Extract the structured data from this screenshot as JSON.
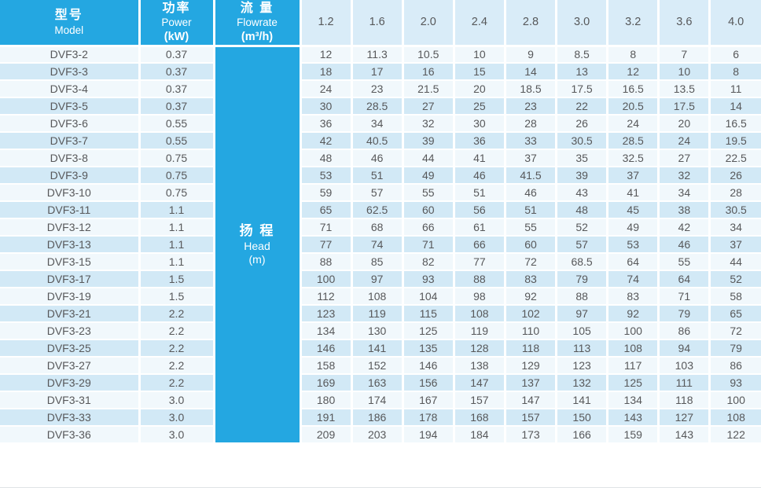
{
  "colors": {
    "accent_cyan": "#24a7e1",
    "flow_header_bg": "#d9ecf8",
    "row_light": "#f1f8fc",
    "row_blue": "#d2e9f6",
    "text_dark": "#57585a",
    "header_text": "#ffffff",
    "separator": "#ffffff"
  },
  "table": {
    "header": {
      "model": {
        "zh": "型号",
        "en": "Model"
      },
      "power": {
        "zh": "功率",
        "en": "Power",
        "unit": "(kW)"
      },
      "flowrate": {
        "zh": "流 量",
        "en": "Flowrate",
        "unit": "(m³/h)"
      },
      "flow_columns": [
        "1.2",
        "1.6",
        "2.0",
        "2.4",
        "2.8",
        "3.0",
        "3.2",
        "3.6",
        "4.0"
      ]
    },
    "head_cell": {
      "zh": "扬 程",
      "en": "Head",
      "unit": "(m)"
    },
    "rows": [
      {
        "model": "DVF3-2",
        "power": "0.37",
        "values": [
          "12",
          "11.3",
          "10.5",
          "10",
          "9",
          "8.5",
          "8",
          "7",
          "6"
        ]
      },
      {
        "model": "DVF3-3",
        "power": "0.37",
        "values": [
          "18",
          "17",
          "16",
          "15",
          "14",
          "13",
          "12",
          "10",
          "8"
        ]
      },
      {
        "model": "DVF3-4",
        "power": "0.37",
        "values": [
          "24",
          "23",
          "21.5",
          "20",
          "18.5",
          "17.5",
          "16.5",
          "13.5",
          "11"
        ]
      },
      {
        "model": "DVF3-5",
        "power": "0.37",
        "values": [
          "30",
          "28.5",
          "27",
          "25",
          "23",
          "22",
          "20.5",
          "17.5",
          "14"
        ]
      },
      {
        "model": "DVF3-6",
        "power": "0.55",
        "values": [
          "36",
          "34",
          "32",
          "30",
          "28",
          "26",
          "24",
          "20",
          "16.5"
        ]
      },
      {
        "model": "DVF3-7",
        "power": "0.55",
        "values": [
          "42",
          "40.5",
          "39",
          "36",
          "33",
          "30.5",
          "28.5",
          "24",
          "19.5"
        ]
      },
      {
        "model": "DVF3-8",
        "power": "0.75",
        "values": [
          "48",
          "46",
          "44",
          "41",
          "37",
          "35",
          "32.5",
          "27",
          "22.5"
        ]
      },
      {
        "model": "DVF3-9",
        "power": "0.75",
        "values": [
          "53",
          "51",
          "49",
          "46",
          "41.5",
          "39",
          "37",
          "32",
          "26"
        ]
      },
      {
        "model": "DVF3-10",
        "power": "0.75",
        "values": [
          "59",
          "57",
          "55",
          "51",
          "46",
          "43",
          "41",
          "34",
          "28"
        ]
      },
      {
        "model": "DVF3-11",
        "power": "1.1",
        "values": [
          "65",
          "62.5",
          "60",
          "56",
          "51",
          "48",
          "45",
          "38",
          "30.5"
        ]
      },
      {
        "model": "DVF3-12",
        "power": "1.1",
        "values": [
          "71",
          "68",
          "66",
          "61",
          "55",
          "52",
          "49",
          "42",
          "34"
        ]
      },
      {
        "model": "DVF3-13",
        "power": "1.1",
        "values": [
          "77",
          "74",
          "71",
          "66",
          "60",
          "57",
          "53",
          "46",
          "37"
        ]
      },
      {
        "model": "DVF3-15",
        "power": "1.1",
        "values": [
          "88",
          "85",
          "82",
          "77",
          "72",
          "68.5",
          "64",
          "55",
          "44"
        ]
      },
      {
        "model": "DVF3-17",
        "power": "1.5",
        "values": [
          "100",
          "97",
          "93",
          "88",
          "83",
          "79",
          "74",
          "64",
          "52"
        ]
      },
      {
        "model": "DVF3-19",
        "power": "1.5",
        "values": [
          "112",
          "108",
          "104",
          "98",
          "92",
          "88",
          "83",
          "71",
          "58"
        ]
      },
      {
        "model": "DVF3-21",
        "power": "2.2",
        "values": [
          "123",
          "119",
          "115",
          "108",
          "102",
          "97",
          "92",
          "79",
          "65"
        ]
      },
      {
        "model": "DVF3-23",
        "power": "2.2",
        "values": [
          "134",
          "130",
          "125",
          "119",
          "110",
          "105",
          "100",
          "86",
          "72"
        ]
      },
      {
        "model": "DVF3-25",
        "power": "2.2",
        "values": [
          "146",
          "141",
          "135",
          "128",
          "118",
          "113",
          "108",
          "94",
          "79"
        ]
      },
      {
        "model": "DVF3-27",
        "power": "2.2",
        "values": [
          "158",
          "152",
          "146",
          "138",
          "129",
          "123",
          "117",
          "103",
          "86"
        ]
      },
      {
        "model": "DVF3-29",
        "power": "2.2",
        "values": [
          "169",
          "163",
          "156",
          "147",
          "137",
          "132",
          "125",
          "111",
          "93"
        ]
      },
      {
        "model": "DVF3-31",
        "power": "3.0",
        "values": [
          "180",
          "174",
          "167",
          "157",
          "147",
          "141",
          "134",
          "118",
          "100"
        ]
      },
      {
        "model": "DVF3-33",
        "power": "3.0",
        "values": [
          "191",
          "186",
          "178",
          "168",
          "157",
          "150",
          "143",
          "127",
          "108"
        ]
      },
      {
        "model": "DVF3-36",
        "power": "3.0",
        "values": [
          "209",
          "203",
          "194",
          "184",
          "173",
          "166",
          "159",
          "143",
          "122"
        ]
      }
    ]
  }
}
